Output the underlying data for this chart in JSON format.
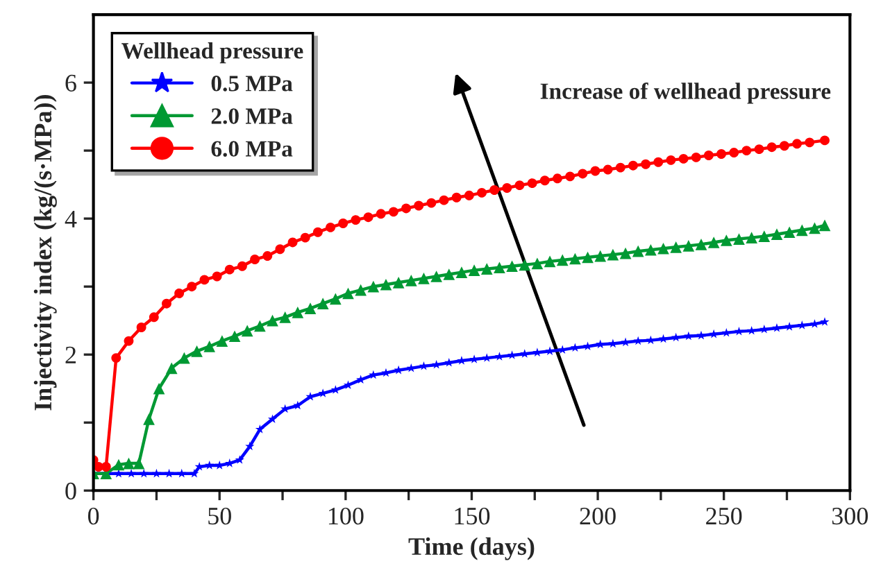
{
  "chart_data": {
    "type": "line",
    "xlabel": "Time (days)",
    "ylabel": "Injectivity index (kg/(s·MPa))",
    "legend_title": "Wellhead pressure",
    "legend": "top left",
    "grid": false,
    "xlim": [
      0,
      300
    ],
    "ylim": [
      0,
      7
    ],
    "xticks": [
      0,
      {
        "value": 25,
        "label": null
      },
      50,
      {
        "value": 75,
        "label": null
      },
      100,
      {
        "value": 125,
        "label": null
      },
      150,
      {
        "value": 175,
        "label": null
      },
      200,
      {
        "value": 225,
        "label": null
      },
      250,
      {
        "value": 275,
        "label": null
      },
      300
    ],
    "yticks": [
      0,
      {
        "value": 1,
        "label": null
      },
      2,
      {
        "value": 3,
        "label": null
      },
      4,
      {
        "value": 5,
        "label": null
      },
      6
    ],
    "annotations": [
      "Increase of wellhead pressure"
    ],
    "series": [
      {
        "name": "0.5 MPa",
        "color": "#0000ff",
        "marker": "star",
        "x": [
          0,
          5,
          10,
          15,
          20,
          25,
          30,
          35,
          40,
          42,
          46,
          50,
          54,
          58,
          62,
          66,
          71,
          76,
          81,
          86,
          91,
          96,
          101,
          106,
          111,
          116,
          121,
          126,
          131,
          136,
          141,
          146,
          151,
          156,
          161,
          166,
          171,
          176,
          181,
          186,
          191,
          196,
          201,
          206,
          211,
          216,
          221,
          226,
          231,
          236,
          241,
          246,
          251,
          256,
          261,
          266,
          271,
          276,
          281,
          286,
          290
        ],
        "values": [
          0.25,
          0.25,
          0.25,
          0.25,
          0.25,
          0.25,
          0.25,
          0.25,
          0.25,
          0.35,
          0.37,
          0.37,
          0.4,
          0.45,
          0.65,
          0.9,
          1.05,
          1.2,
          1.25,
          1.38,
          1.43,
          1.48,
          1.55,
          1.63,
          1.7,
          1.73,
          1.77,
          1.8,
          1.83,
          1.85,
          1.88,
          1.91,
          1.93,
          1.95,
          1.97,
          1.99,
          2.01,
          2.03,
          2.05,
          2.07,
          2.1,
          2.12,
          2.15,
          2.16,
          2.18,
          2.2,
          2.21,
          2.23,
          2.25,
          2.27,
          2.28,
          2.3,
          2.32,
          2.34,
          2.35,
          2.37,
          2.39,
          2.41,
          2.43,
          2.45,
          2.48
        ]
      },
      {
        "name": "2.0 MPa",
        "color": "#009933",
        "marker": "triangle",
        "x": [
          0,
          5,
          10,
          14,
          18,
          22,
          26,
          31,
          36,
          41,
          46,
          51,
          56,
          61,
          66,
          71,
          76,
          81,
          86,
          91,
          96,
          101,
          106,
          111,
          116,
          121,
          126,
          131,
          136,
          141,
          146,
          151,
          156,
          161,
          166,
          171,
          176,
          181,
          186,
          191,
          196,
          201,
          206,
          211,
          216,
          221,
          226,
          231,
          236,
          241,
          246,
          251,
          256,
          261,
          266,
          271,
          276,
          281,
          286,
          290
        ],
        "values": [
          0.25,
          0.25,
          0.38,
          0.4,
          0.4,
          1.05,
          1.5,
          1.8,
          1.95,
          2.05,
          2.12,
          2.2,
          2.27,
          2.35,
          2.42,
          2.5,
          2.55,
          2.62,
          2.68,
          2.75,
          2.82,
          2.9,
          2.95,
          3.0,
          3.03,
          3.06,
          3.09,
          3.12,
          3.15,
          3.18,
          3.21,
          3.24,
          3.26,
          3.28,
          3.3,
          3.32,
          3.34,
          3.37,
          3.39,
          3.41,
          3.43,
          3.45,
          3.47,
          3.49,
          3.52,
          3.54,
          3.56,
          3.58,
          3.6,
          3.62,
          3.65,
          3.68,
          3.7,
          3.72,
          3.74,
          3.77,
          3.8,
          3.83,
          3.86,
          3.9
        ]
      },
      {
        "name": "6.0 MPa",
        "color": "#ff0000",
        "marker": "circle",
        "x": [
          0,
          2,
          5,
          9,
          14,
          19,
          24,
          29,
          34,
          39,
          44,
          49,
          54,
          59,
          64,
          69,
          74,
          79,
          84,
          89,
          94,
          99,
          104,
          109,
          114,
          119,
          124,
          129,
          134,
          139,
          144,
          149,
          154,
          159,
          164,
          169,
          174,
          179,
          184,
          189,
          194,
          199,
          204,
          209,
          214,
          219,
          224,
          229,
          234,
          239,
          244,
          249,
          254,
          259,
          264,
          269,
          274,
          279,
          284,
          290
        ],
        "values": [
          0.45,
          0.35,
          0.35,
          1.95,
          2.2,
          2.4,
          2.55,
          2.75,
          2.9,
          3.0,
          3.1,
          3.15,
          3.25,
          3.3,
          3.4,
          3.45,
          3.55,
          3.65,
          3.72,
          3.8,
          3.87,
          3.93,
          3.98,
          4.02,
          4.07,
          4.1,
          4.15,
          4.19,
          4.23,
          4.27,
          4.31,
          4.34,
          4.38,
          4.42,
          4.45,
          4.49,
          4.52,
          4.56,
          4.59,
          4.62,
          4.66,
          4.7,
          4.72,
          4.75,
          4.78,
          4.8,
          4.83,
          4.86,
          4.88,
          4.9,
          4.93,
          4.95,
          4.97,
          5.0,
          5.02,
          5.05,
          5.07,
          5.1,
          5.12,
          5.15
        ]
      }
    ]
  }
}
